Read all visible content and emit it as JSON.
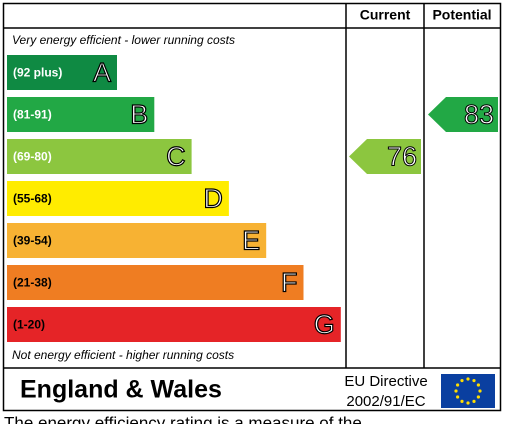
{
  "chart_data": {
    "type": "epc",
    "headers": [
      "Current",
      "Potential"
    ],
    "top_note": "Very energy efficient - lower running costs",
    "bottom_note": "Not energy efficient - higher running costs",
    "bands": [
      {
        "range": "(92 plus)",
        "letter": "A",
        "min": 92,
        "max": null,
        "color": "#0f8a43"
      },
      {
        "range": "(81-91)",
        "letter": "B",
        "min": 81,
        "max": 91,
        "color": "#22a845"
      },
      {
        "range": "(69-80)",
        "letter": "C",
        "min": 69,
        "max": 80,
        "color": "#8cc63f"
      },
      {
        "range": "(55-68)",
        "letter": "D",
        "min": 55,
        "max": 68,
        "color": "#ffec00"
      },
      {
        "range": "(39-54)",
        "letter": "E",
        "min": 39,
        "max": 54,
        "color": "#f7b233"
      },
      {
        "range": "(21-38)",
        "letter": "F",
        "min": 21,
        "max": 38,
        "color": "#ef7d22"
      },
      {
        "range": "(1-20)",
        "letter": "G",
        "min": 1,
        "max": 20,
        "color": "#e52427"
      }
    ],
    "current": 76,
    "potential": 83,
    "footer_region": "England & Wales",
    "footer_directive": [
      "EU Directive",
      "2002/91/EC"
    ],
    "caption": "The energy efficiency rating is a measure of the"
  }
}
